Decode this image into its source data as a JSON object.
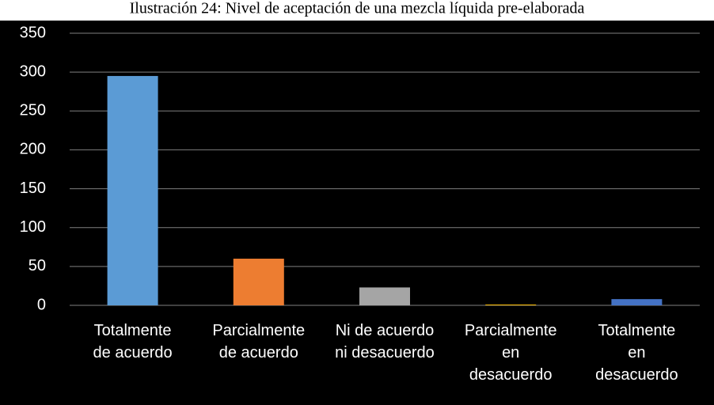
{
  "chart_data": {
    "type": "bar",
    "title": "Ilustración 24: Nivel de aceptación de una mezcla líquida pre-elaborada",
    "categories": [
      "Totalmente\nde acuerdo",
      "Parcialmente\nde acuerdo",
      "Ni de acuerdo\nni desacuerdo",
      "Parcialmente\nen\ndesacuerdo",
      "Totalmente\nen\ndesacuerdo"
    ],
    "values": [
      295,
      60,
      23,
      1,
      8
    ],
    "colors": [
      "#5b9bd5",
      "#ed7d31",
      "#a5a5a5",
      "#ffc000",
      "#4472c4"
    ],
    "ylim": [
      0,
      350
    ],
    "yticks": [
      0,
      50,
      100,
      150,
      200,
      250,
      300,
      350
    ],
    "grid": true
  }
}
